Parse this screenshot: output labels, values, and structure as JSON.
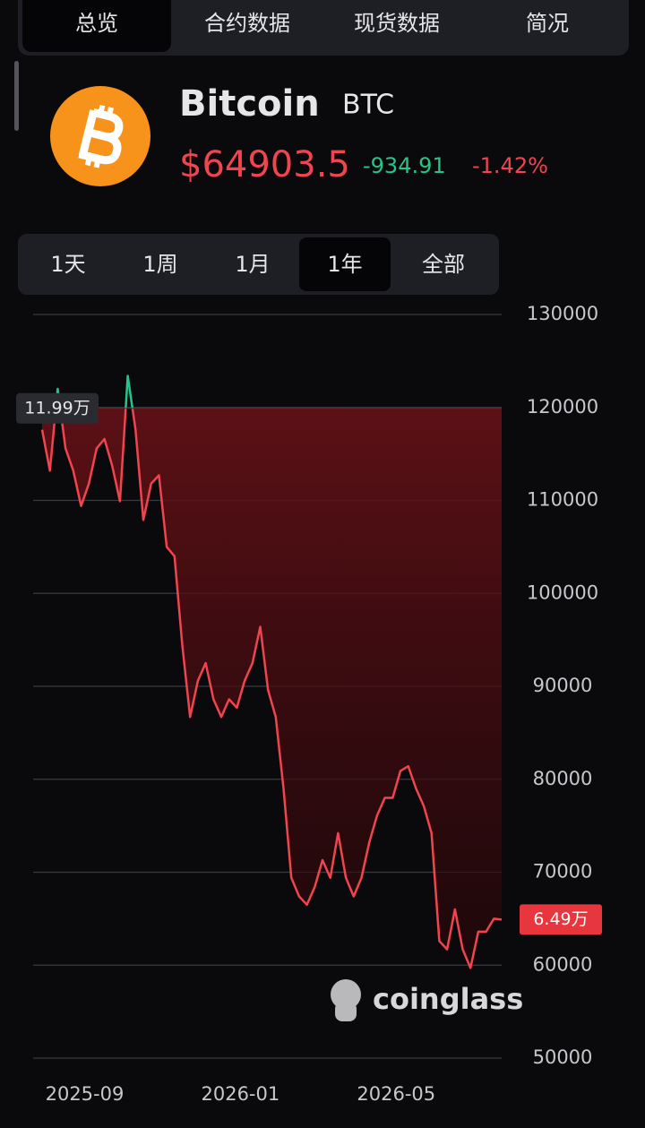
{
  "tabs": [
    "总览",
    "合约数据",
    "现货数据",
    "简况"
  ],
  "active_tab": 0,
  "coin": {
    "name": "Bitcoin",
    "symbol": "BTC",
    "price": "$64903.5",
    "change": "-934.91",
    "change_pct": "-1.42%"
  },
  "ranges": [
    "1天",
    "1周",
    "1月",
    "1年",
    "全部"
  ],
  "active_range": 3,
  "chart_data": {
    "type": "line",
    "categories": [
      null,
      null,
      null,
      null,
      null,
      "2025-09",
      null,
      null,
      null,
      null,
      null,
      null,
      null,
      null,
      null,
      null,
      null,
      null,
      null,
      null,
      null,
      null,
      null,
      null,
      null,
      "2026-01",
      null,
      null,
      null,
      null,
      null,
      null,
      null,
      null,
      null,
      null,
      null,
      null,
      null,
      null,
      null,
      null,
      null,
      null,
      null,
      "2026-05",
      null,
      null,
      null,
      null,
      null,
      null,
      null,
      null,
      null,
      null,
      null,
      null,
      null,
      null
    ],
    "values": [
      117600,
      113200,
      122000,
      115600,
      113200,
      109400,
      111800,
      115600,
      116600,
      113700,
      109900,
      123400,
      117600,
      107900,
      111800,
      112700,
      105000,
      104000,
      94400,
      86700,
      90600,
      92500,
      88600,
      86700,
      88600,
      87700,
      90600,
      92500,
      96400,
      89600,
      86700,
      79000,
      69400,
      67400,
      66500,
      68400,
      71300,
      69400,
      74200,
      69400,
      67400,
      69400,
      73200,
      76100,
      78000,
      78000,
      80900,
      81400,
      79000,
      77100,
      74200,
      62600,
      61700,
      66000,
      61700,
      59700,
      63600,
      63600,
      65000,
      64903.5
    ],
    "color": "#f0444e",
    "above_reference_color": "#27c48a",
    "reference": {
      "value": 119900,
      "label": "11.99万"
    },
    "current": {
      "value": 64903.5,
      "label": "6.49万"
    },
    "ylim": [
      50000,
      130000
    ],
    "yticks": [
      50000,
      60000,
      70000,
      80000,
      90000,
      100000,
      110000,
      120000,
      130000
    ],
    "grid": true,
    "watermark": "coinglass"
  }
}
